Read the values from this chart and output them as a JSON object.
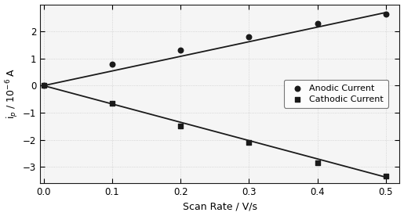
{
  "anodic_x": [
    0.0,
    0.1,
    0.2,
    0.3,
    0.4,
    0.5
  ],
  "anodic_y": [
    0.0,
    0.8,
    1.3,
    1.8,
    2.3,
    2.65
  ],
  "cathodic_x": [
    0.0,
    0.1,
    0.2,
    0.3,
    0.4,
    0.5
  ],
  "cathodic_y": [
    0.0,
    -0.65,
    -1.5,
    -2.1,
    -2.85,
    -3.35
  ],
  "anodic_fit_x": [
    0.0,
    0.5
  ],
  "anodic_fit_y": [
    0.0,
    2.7
  ],
  "cathodic_fit_x": [
    0.0,
    0.5
  ],
  "cathodic_fit_y": [
    0.0,
    -3.38
  ],
  "xlabel": "Scan Rate / V/s",
  "ylabel": "i$_p$ / 10$^{-6}$ A",
  "xlim": [
    -0.005,
    0.52
  ],
  "ylim": [
    -3.6,
    3.0
  ],
  "yticks": [
    -3,
    -2,
    -1,
    0,
    1,
    2
  ],
  "xticks": [
    0.0,
    0.1,
    0.2,
    0.3,
    0.4,
    0.5
  ],
  "anodic_label": "Anodic Current",
  "cathodic_label": "Cathodic Current",
  "line_color": "#1a1a1a",
  "dot_color": "#1a1a1a",
  "background_color": "#f5f5f5",
  "grid_color": "#cccccc",
  "legend_fontsize": 8,
  "axis_fontsize": 9,
  "tick_fontsize": 8.5
}
